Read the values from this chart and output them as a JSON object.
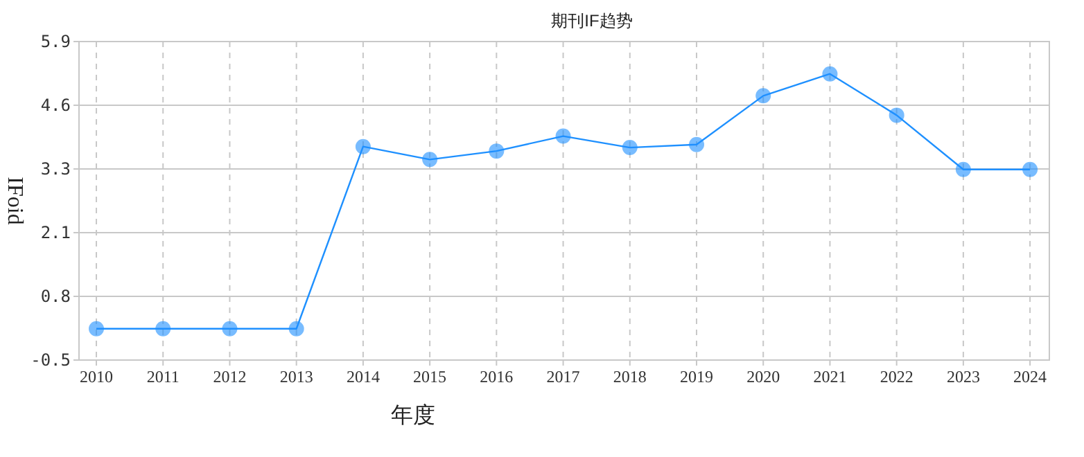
{
  "chart_data": {
    "type": "line",
    "title": "期刊IF趋势",
    "xlabel": "年度",
    "ylabel": "IFoid",
    "x": [
      2010,
      2011,
      2012,
      2013,
      2014,
      2015,
      2016,
      2017,
      2018,
      2019,
      2020,
      2021,
      2022,
      2023,
      2024
    ],
    "series": [
      {
        "color": "#1e90ff",
        "values": [
          0.13,
          0.13,
          0.13,
          0.13,
          3.79,
          3.53,
          3.7,
          4.0,
          3.77,
          3.83,
          4.81,
          5.25,
          4.42,
          3.33,
          3.33
        ]
      }
    ],
    "xlim": [
      2009.74,
      2024.29
    ],
    "ylim": [
      -0.5,
      5.9
    ],
    "xticks": [
      2010,
      2011,
      2012,
      2013,
      2014,
      2015,
      2016,
      2017,
      2018,
      2019,
      2020,
      2021,
      2022,
      2023,
      2024
    ],
    "yticks": [
      -0.5,
      {
        "value": 0.78,
        "label": "0.8"
      },
      {
        "value": 2.06,
        "label": "2.1"
      },
      {
        "value": 3.34,
        "label": "3.3"
      },
      {
        "value": 4.62,
        "label": "4.6"
      },
      5.9
    ],
    "grid": true,
    "marker": "circle"
  }
}
